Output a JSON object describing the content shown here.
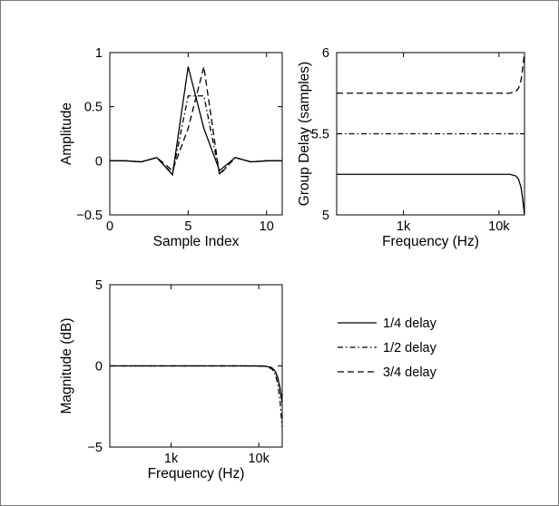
{
  "chart_data": [
    {
      "id": "impulse",
      "type": "line",
      "title": "",
      "xlabel": "Sample Index",
      "ylabel": "Amplitude",
      "xlim": [
        0,
        11
      ],
      "ylim": [
        -0.5,
        1
      ],
      "xscale": "linear",
      "xticks": [
        0,
        5,
        10
      ],
      "xtick_labels": [
        "0",
        "5",
        "10"
      ],
      "yticks": [
        -0.5,
        0,
        0.5,
        1
      ],
      "ytick_labels": [
        "−0.5",
        "0",
        "0.5",
        "1"
      ],
      "grid": false,
      "series": [
        {
          "name": "1/4 delay",
          "dash": "solid",
          "x": [
            0,
            1,
            2,
            3,
            4,
            5,
            6,
            7,
            8,
            9,
            10,
            11
          ],
          "y": [
            0.0,
            0.0,
            -0.01,
            0.03,
            -0.13,
            0.87,
            0.3,
            -0.09,
            0.03,
            -0.01,
            0.0,
            0.0
          ]
        },
        {
          "name": "1/2 delay",
          "dash": "dashdot",
          "x": [
            0,
            1,
            2,
            3,
            4,
            5,
            6,
            7,
            8,
            9,
            10,
            11
          ],
          "y": [
            0.0,
            0.0,
            -0.01,
            0.03,
            -0.12,
            0.6,
            0.6,
            -0.12,
            0.03,
            -0.01,
            0.0,
            0.0
          ]
        },
        {
          "name": "3/4 delay",
          "dash": "dashed",
          "x": [
            0,
            1,
            2,
            3,
            4,
            5,
            6,
            7,
            8,
            9,
            10,
            11
          ],
          "y": [
            0.0,
            0.0,
            -0.01,
            0.03,
            -0.09,
            0.3,
            0.87,
            -0.13,
            0.03,
            -0.01,
            0.0,
            0.0
          ]
        }
      ]
    },
    {
      "id": "group-delay",
      "type": "line",
      "title": "",
      "xlabel": "Frequency (Hz)",
      "ylabel": "Group Delay (samples)",
      "xscale": "log",
      "xlim": [
        200,
        18500
      ],
      "ylim": [
        5,
        6
      ],
      "xticks": [
        1000,
        10000
      ],
      "xtick_labels": [
        "1k",
        "10k"
      ],
      "yticks": [
        5,
        5.5,
        6
      ],
      "ytick_labels": [
        "5",
        "5.5",
        "6"
      ],
      "grid": false,
      "series": [
        {
          "name": "1/4 delay",
          "dash": "solid",
          "x": [
            200,
            1000,
            5000,
            10000,
            13000,
            15000,
            16000,
            17000,
            17500,
            18000,
            18500
          ],
          "y": [
            5.25,
            5.25,
            5.25,
            5.25,
            5.25,
            5.24,
            5.22,
            5.17,
            5.12,
            5.06,
            5.0
          ]
        },
        {
          "name": "1/2 delay",
          "dash": "dashdot",
          "x": [
            200,
            18500
          ],
          "y": [
            5.5,
            5.5
          ]
        },
        {
          "name": "3/4 delay",
          "dash": "dashed",
          "x": [
            200,
            1000,
            5000,
            10000,
            13000,
            15000,
            16000,
            17000,
            17500,
            18000,
            18500
          ],
          "y": [
            5.75,
            5.75,
            5.75,
            5.75,
            5.75,
            5.76,
            5.78,
            5.83,
            5.88,
            5.94,
            6.0
          ]
        }
      ]
    },
    {
      "id": "magnitude",
      "type": "line",
      "title": "",
      "xlabel": "Frequency (Hz)",
      "ylabel": "Magnitude (dB)",
      "xscale": "log",
      "xlim": [
        200,
        18500
      ],
      "ylim": [
        -5,
        5
      ],
      "xticks": [
        1000,
        10000
      ],
      "xtick_labels": [
        "1k",
        "10k"
      ],
      "yticks": [
        -5,
        0,
        5
      ],
      "ytick_labels": [
        "−5",
        "0",
        "5"
      ],
      "grid": false,
      "series": [
        {
          "name": "1/4 delay",
          "dash": "solid",
          "x": [
            200,
            1000,
            5000,
            10000,
            12000,
            14000,
            15500,
            16500,
            17500,
            18500
          ],
          "y": [
            0,
            0,
            0,
            0,
            -0.02,
            -0.1,
            -0.35,
            -0.75,
            -1.4,
            -2.3
          ]
        },
        {
          "name": "1/2 delay",
          "dash": "dashdot",
          "x": [
            200,
            1000,
            5000,
            10000,
            12000,
            14000,
            15500,
            16500,
            17500,
            18500
          ],
          "y": [
            0,
            0,
            0,
            -0.01,
            -0.04,
            -0.17,
            -0.55,
            -1.15,
            -2.2,
            -3.8
          ]
        },
        {
          "name": "3/4 delay",
          "dash": "dashed",
          "x": [
            200,
            1000,
            5000,
            10000,
            12000,
            14000,
            15500,
            16500,
            17500,
            18500
          ],
          "y": [
            0,
            0,
            0,
            0,
            -0.02,
            -0.1,
            -0.35,
            -0.75,
            -1.4,
            -2.3
          ]
        }
      ]
    }
  ],
  "legend": {
    "placement": "lower-right",
    "entries": [
      {
        "label": "1/4 delay",
        "dash": "solid"
      },
      {
        "label": "1/2 delay",
        "dash": "dashdot"
      },
      {
        "label": "3/4 delay",
        "dash": "dashed"
      }
    ]
  }
}
